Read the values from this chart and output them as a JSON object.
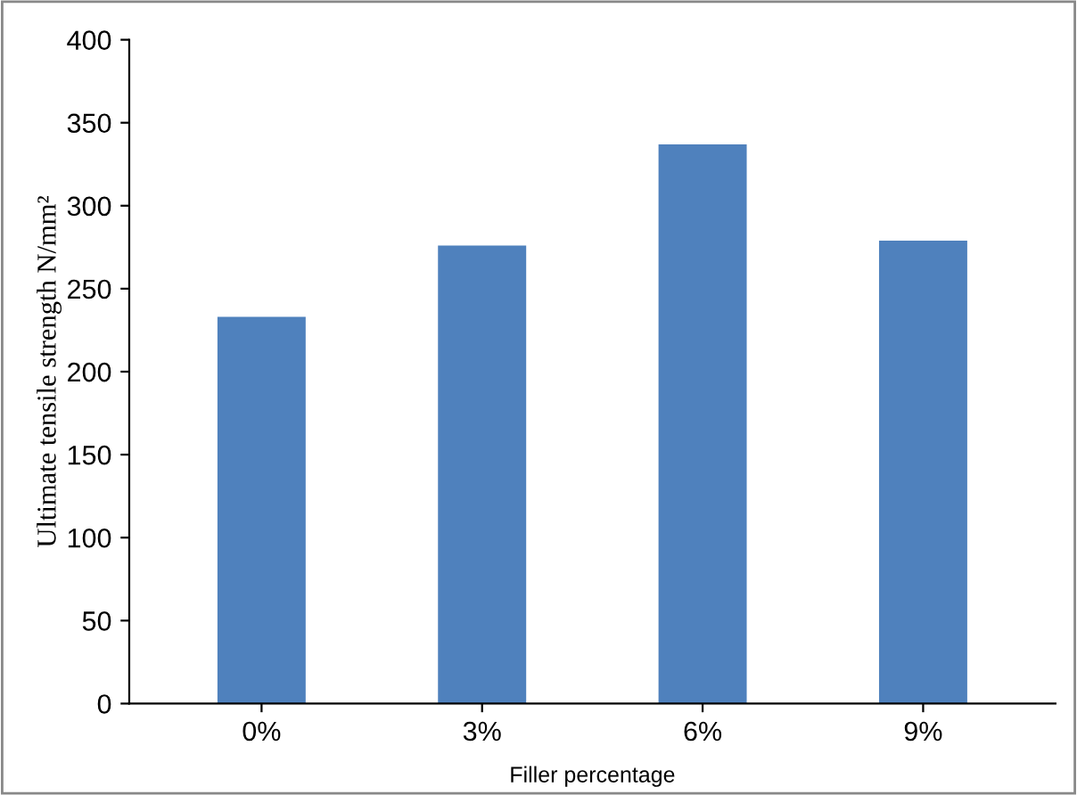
{
  "chart_data": {
    "type": "bar",
    "categories": [
      "0%",
      "3%",
      "6%",
      "9%"
    ],
    "values": [
      233,
      276,
      337,
      279
    ],
    "color": "#4f81bd",
    "xlabel": "Filler percentage",
    "ylabel": "Ultimate tensile strength N/mm²",
    "ylim": [
      0,
      400
    ],
    "yticks": [
      0,
      50,
      100,
      150,
      200,
      250,
      300,
      350,
      400
    ],
    "grid": false
  }
}
